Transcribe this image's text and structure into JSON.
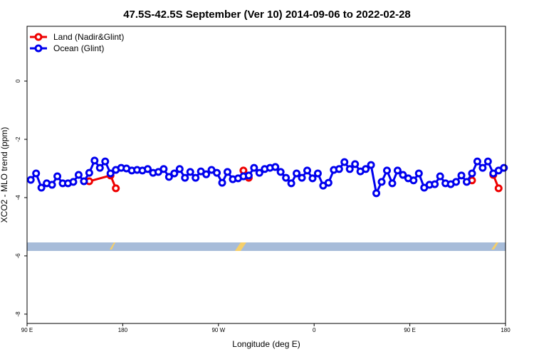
{
  "chart_data": {
    "type": "line",
    "title": "47.5S-42.5S September (Ver 10)   2014-09-06 to 2022-02-28",
    "x_label": "Longitude (deg E)",
    "y_label": "XCO2 - MLO trend (ppm)",
    "xlim": [
      90,
      540
    ],
    "xticks": [
      {
        "value": 90,
        "label": "90 E"
      },
      180,
      {
        "value": 270,
        "label": "90 W"
      },
      {
        "value": 360,
        "label": "0"
      },
      {
        "value": 450,
        "label": "90 E"
      },
      {
        "value": 540,
        "label": "180"
      }
    ],
    "ylim": [
      -8.32,
      1.88
    ],
    "yticks": [
      0,
      -2,
      -4,
      -6,
      -8
    ],
    "legend": "top-left",
    "series": [
      {
        "name": "Land (Nadir&Glint)",
        "color": "#ee0000",
        "x": [
          148.5,
          168.5,
          173.5,
          null,
          293.5,
          298.5,
          null,
          508.5,
          null,
          528.5,
          533.5
        ],
        "values": [
          -3.44,
          -3.24,
          -3.68,
          null,
          -3.07,
          -3.32,
          null,
          -3.41,
          null,
          -3.22,
          -3.68
        ]
      },
      {
        "name": "Ocean (Glint)",
        "color": "#0000ee",
        "x": [
          93.5,
          98.5,
          103.5,
          108.5,
          113.5,
          118.5,
          123.5,
          128.5,
          133.5,
          138.5,
          143.5,
          148.5,
          153.5,
          158.5,
          163.5,
          168.5,
          173.5,
          178.5,
          183.5,
          188.5,
          193.5,
          198.5,
          203.5,
          208.5,
          213.5,
          218.5,
          223.5,
          228.5,
          233.5,
          238.5,
          243.5,
          248.5,
          253.5,
          258.5,
          263.5,
          268.5,
          273.5,
          278.5,
          283.5,
          288.5,
          293.5,
          298.5,
          303.5,
          308.5,
          313.5,
          318.5,
          323.5,
          328.5,
          333.5,
          338.5,
          343.5,
          348.5,
          353.5,
          358.5,
          363.5,
          368.5,
          373.5,
          378.5,
          383.5,
          388.5,
          393.5,
          398.5,
          403.5,
          408.5,
          413.5,
          418.5,
          423.5,
          428.5,
          433.5,
          438.5,
          443.5,
          448.5,
          453.5,
          458.5,
          463.5,
          468.5,
          473.5,
          478.5,
          483.5,
          488.5,
          493.5,
          498.5,
          503.5,
          508.5,
          513.5,
          518.5,
          523.5,
          528.5,
          533.5,
          538.5
        ],
        "values": [
          -3.39,
          -3.17,
          -3.66,
          -3.51,
          -3.56,
          -3.27,
          -3.51,
          -3.51,
          -3.46,
          -3.22,
          -3.44,
          -3.15,
          -2.73,
          -2.98,
          -2.76,
          -3.17,
          -3.05,
          -2.98,
          -3.0,
          -3.07,
          -3.05,
          -3.07,
          -3.02,
          -3.15,
          -3.12,
          -3.02,
          -3.29,
          -3.17,
          -3.02,
          -3.32,
          -3.12,
          -3.32,
          -3.1,
          -3.2,
          -3.05,
          -3.15,
          -3.49,
          -3.12,
          -3.37,
          -3.34,
          -3.27,
          -3.24,
          -2.98,
          -3.15,
          -3.02,
          -2.98,
          -2.95,
          -3.12,
          -3.32,
          -3.51,
          -3.17,
          -3.32,
          -3.07,
          -3.34,
          -3.17,
          -3.59,
          -3.49,
          -3.05,
          -3.02,
          -2.78,
          -3.02,
          -2.85,
          -3.1,
          -3.02,
          -2.88,
          -3.85,
          -3.46,
          -3.07,
          -3.51,
          -3.07,
          -3.22,
          -3.34,
          -3.41,
          -3.17,
          -3.66,
          -3.56,
          -3.54,
          -3.27,
          -3.51,
          -3.54,
          -3.46,
          -3.24,
          -3.46,
          -3.17,
          -2.76,
          -2.98,
          -2.76,
          -3.17,
          -3.07,
          -2.98
        ]
      }
    ]
  }
}
